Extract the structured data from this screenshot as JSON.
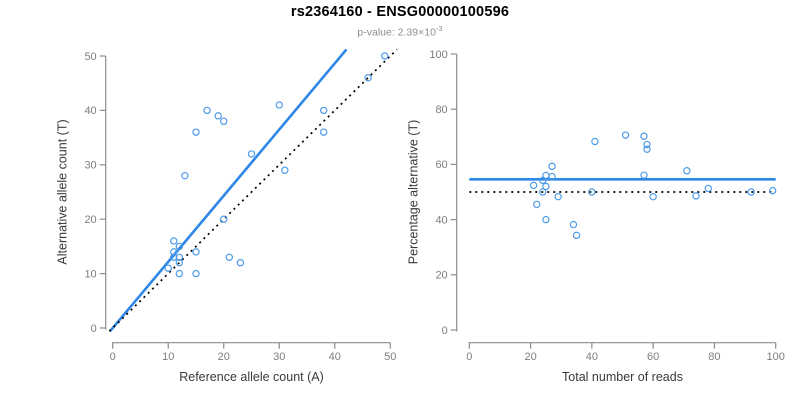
{
  "header": {
    "title": "rs2364160 - ENSG00000100596",
    "pvalue_text": "p-value: 2.39×10",
    "pvalue_exponent": "-3"
  },
  "colors": {
    "line_blue": "#2E86E8",
    "point_blue": "#4D9BE8",
    "axis": "#8C8C8C",
    "tick_label": "#7E7E7E",
    "axis_label": "#3A3A3A",
    "dotted_black": "#000000",
    "title": "#000000",
    "subtitle": "#8E8E8E"
  },
  "chart_data": [
    {
      "type": "scatter",
      "panel": "left",
      "xlabel": "Reference allele count (A)",
      "ylabel": "Alternative allele count (T)",
      "xlim": [
        0,
        50
      ],
      "ylim": [
        0,
        50
      ],
      "xticks": [
        0,
        10,
        20,
        30,
        40,
        50
      ],
      "yticks": [
        0,
        10,
        20,
        30,
        40,
        50
      ],
      "grid": false,
      "legend": "none",
      "points": [
        [
          17,
          40
        ],
        [
          19,
          39
        ],
        [
          20,
          38
        ],
        [
          15,
          36
        ],
        [
          30,
          41
        ],
        [
          38,
          40
        ],
        [
          38,
          36
        ],
        [
          49,
          50
        ],
        [
          46,
          46
        ],
        [
          25,
          32
        ],
        [
          31,
          29
        ],
        [
          13,
          28
        ],
        [
          20,
          20
        ],
        [
          11,
          16
        ],
        [
          12,
          15
        ],
        [
          11,
          14
        ],
        [
          12,
          13
        ],
        [
          11,
          13
        ],
        [
          12,
          12
        ],
        [
          15,
          14
        ],
        [
          10,
          11
        ],
        [
          12,
          10
        ],
        [
          15,
          10
        ],
        [
          21,
          13
        ],
        [
          23,
          12
        ]
      ],
      "lines": [
        {
          "name": "regression-line",
          "kind": "segment",
          "x1": -0.5,
          "y1": -0.61,
          "x2": 42.1,
          "y2": 51.2,
          "color": "blue",
          "dash": "solid"
        },
        {
          "name": "identity-line",
          "kind": "segment",
          "x1": -0.6,
          "y1": -0.6,
          "x2": 51.2,
          "y2": 51.2,
          "color": "black",
          "dash": "dotted"
        }
      ]
    },
    {
      "type": "scatter",
      "panel": "right",
      "xlabel": "Total number of reads",
      "ylabel": "Percentage alternative (T)",
      "xlim": [
        0,
        100
      ],
      "ylim": [
        0,
        100
      ],
      "xticks": [
        0,
        20,
        40,
        60,
        80,
        100
      ],
      "yticks": [
        0,
        20,
        40,
        60,
        80,
        100
      ],
      "grid": false,
      "legend": "none",
      "points": [
        [
          57,
          70.2
        ],
        [
          58,
          67.2
        ],
        [
          58,
          65.5
        ],
        [
          51,
          70.6
        ],
        [
          71,
          57.7
        ],
        [
          78,
          51.3
        ],
        [
          74,
          48.6
        ],
        [
          99,
          50.5
        ],
        [
          92,
          50.0
        ],
        [
          57,
          56.1
        ],
        [
          60,
          48.3
        ],
        [
          41,
          68.3
        ],
        [
          40,
          50.0
        ],
        [
          27,
          59.3
        ],
        [
          27,
          55.6
        ],
        [
          25,
          56.0
        ],
        [
          25,
          52.0
        ],
        [
          24,
          54.2
        ],
        [
          24,
          50.0
        ],
        [
          29,
          48.3
        ],
        [
          21,
          52.4
        ],
        [
          22,
          45.5
        ],
        [
          25,
          40.0
        ],
        [
          34,
          38.2
        ],
        [
          35,
          34.3
        ]
      ],
      "lines": [
        {
          "name": "mean-percentage-line",
          "kind": "horizontal",
          "y": 54.6,
          "color": "blue",
          "dash": "solid"
        },
        {
          "name": "expected-50pct-line",
          "kind": "horizontal",
          "y": 50,
          "color": "black",
          "dash": "dotted"
        }
      ]
    }
  ]
}
